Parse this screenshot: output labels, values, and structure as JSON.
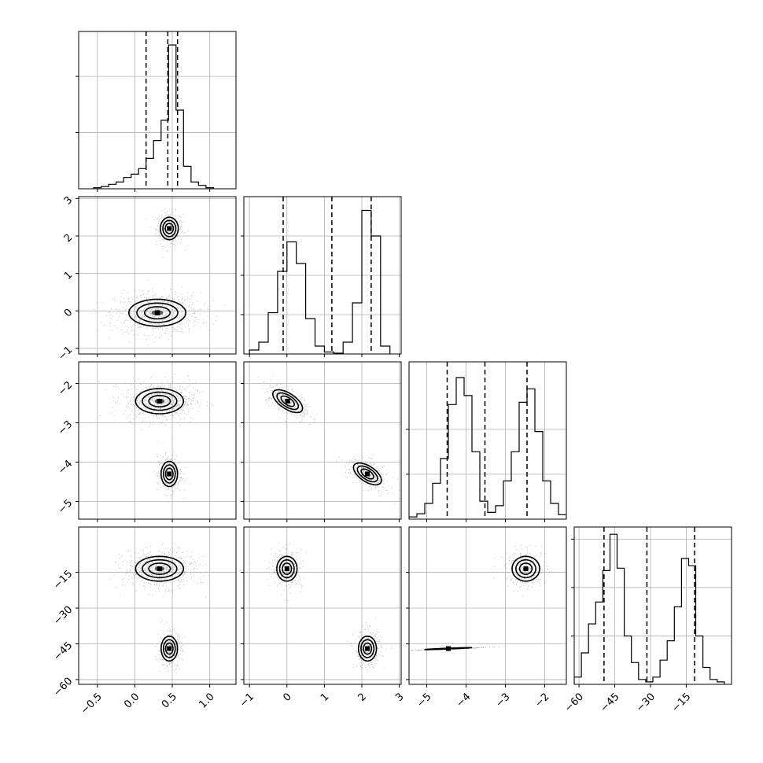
{
  "chart_data": {
    "type": "corner",
    "grid": true,
    "parameters": [
      {
        "range": [
          -0.75,
          1.35
        ],
        "ticks": [
          -0.5,
          0.0,
          0.5,
          1.0
        ],
        "tick_labels": [
          "−0.5",
          "0.0",
          "0.5",
          "1.0"
        ],
        "hist_ylim": [
          0,
          1.4
        ],
        "hist_ticks": [
          0.5,
          1.0
        ],
        "histogram": {
          "edges": [
            -0.55,
            -0.45,
            -0.35,
            -0.25,
            -0.15,
            -0.05,
            0.05,
            0.15,
            0.25,
            0.35,
            0.45,
            0.55,
            0.65,
            0.75,
            0.85,
            0.95,
            1.05
          ],
          "values": [
            0.01,
            0.02,
            0.04,
            0.06,
            0.1,
            0.13,
            0.18,
            0.27,
            0.43,
            0.61,
            1.28,
            0.7,
            0.2,
            0.06,
            0.03,
            0.01
          ]
        },
        "quantiles": [
          0.15,
          0.44,
          0.57
        ]
      },
      {
        "range": [
          -1.15,
          3.05
        ],
        "ticks": [
          -1,
          0,
          1,
          2,
          3
        ],
        "tick_labels": [
          "−1",
          "0",
          "1",
          "2",
          "3"
        ],
        "hist_ylim": [
          0,
          4
        ],
        "hist_ticks": [
          1,
          2,
          3
        ],
        "histogram": {
          "edges": [
            -1.0,
            -0.75,
            -0.5,
            -0.25,
            0.0,
            0.25,
            0.5,
            0.75,
            1.0,
            1.25,
            1.5,
            1.75,
            2.0,
            2.25,
            2.5,
            2.75
          ],
          "values": [
            0.1,
            0.3,
            1.05,
            2.1,
            2.85,
            2.3,
            0.9,
            0.2,
            0.05,
            0.02,
            0.3,
            1.3,
            3.65,
            3.0,
            0.2
          ]
        },
        "quantiles": [
          -0.1,
          1.2,
          2.25
        ]
      },
      {
        "range": [
          -5.45,
          -1.45
        ],
        "ticks": [
          -5,
          -4,
          -3,
          -2
        ],
        "tick_labels": [
          "−5",
          "−4",
          "−3",
          "−2"
        ],
        "hist_ylim": [
          0,
          3.5
        ],
        "hist_ticks": [
          1,
          2
        ],
        "histogram": {
          "edges": [
            -5.45,
            -5.25,
            -5.05,
            -4.85,
            -4.65,
            -4.45,
            -4.25,
            -4.05,
            -3.85,
            -3.65,
            -3.45,
            -3.25,
            -3.05,
            -2.85,
            -2.65,
            -2.45,
            -2.25,
            -2.05,
            -1.85,
            -1.65,
            -1.45
          ],
          "values": [
            0.05,
            0.12,
            0.35,
            0.8,
            1.35,
            2.55,
            3.15,
            2.75,
            1.5,
            0.4,
            0.15,
            0.3,
            0.85,
            1.5,
            2.6,
            2.9,
            1.95,
            0.85,
            0.35,
            0.1
          ]
        },
        "quantiles": [
          -4.48,
          -3.52,
          -2.45
        ]
      },
      {
        "range": [
          -62,
          4
        ],
        "ticks": [
          -60,
          -45,
          -30,
          -15
        ],
        "tick_labels": [
          "−60",
          "−45",
          "−30",
          "−15"
        ],
        "hist_ylim": [
          0,
          0.065
        ],
        "hist_ticks": [
          0.02,
          0.04,
          0.06
        ],
        "histogram": {
          "edges": [
            -62,
            -59,
            -56,
            -53,
            -50,
            -47,
            -44,
            -41,
            -38,
            -35,
            -32,
            -29,
            -26,
            -23,
            -20,
            -17,
            -14,
            -11,
            -8,
            -5,
            -2,
            1
          ],
          "values": [
            0.003,
            0.013,
            0.025,
            0.034,
            0.047,
            0.062,
            0.048,
            0.02,
            0.009,
            0.002,
            0.001,
            0.003,
            0.01,
            0.018,
            0.032,
            0.052,
            0.049,
            0.02,
            0.007,
            0.002,
            0.001
          ]
        },
        "quantiles": [
          -49.5,
          -31.5,
          -11.5
        ]
      }
    ],
    "pairs": [
      {
        "row": 1,
        "col": 0,
        "blobs": [
          {
            "cx": 0.46,
            "cy": 2.2,
            "rx": 0.12,
            "ry": 0.3,
            "angle": 0,
            "n": 1.0
          },
          {
            "cx": 0.3,
            "cy": -0.05,
            "rx": 0.38,
            "ry": 0.36,
            "angle": 0,
            "n": 2.4
          }
        ]
      },
      {
        "row": 2,
        "col": 0,
        "blobs": [
          {
            "cx": 0.33,
            "cy": -2.45,
            "rx": 0.32,
            "ry": 0.32,
            "angle": 0,
            "n": 2.2
          },
          {
            "cx": 0.46,
            "cy": -4.3,
            "rx": 0.11,
            "ry": 0.32,
            "angle": 0,
            "n": 1.0
          }
        ]
      },
      {
        "row": 2,
        "col": 1,
        "blobs": [
          {
            "cx": 0.02,
            "cy": -2.45,
            "rx": 0.45,
            "ry": 0.2,
            "angle": -0.55,
            "n": 1.0
          },
          {
            "cx": 2.15,
            "cy": -4.3,
            "rx": 0.42,
            "ry": 0.2,
            "angle": -0.55,
            "n": 1.0
          }
        ]
      },
      {
        "row": 3,
        "col": 0,
        "blobs": [
          {
            "cx": 0.33,
            "cy": -13.5,
            "rx": 0.32,
            "ry": 5.2,
            "angle": 0,
            "n": 2.2
          },
          {
            "cx": 0.46,
            "cy": -47,
            "rx": 0.11,
            "ry": 5.2,
            "angle": 0,
            "n": 1.0
          }
        ]
      },
      {
        "row": 3,
        "col": 1,
        "blobs": [
          {
            "cx": 0.0,
            "cy": -13.5,
            "rx": 0.27,
            "ry": 5.2,
            "angle": 0,
            "n": 1.0
          },
          {
            "cx": 2.15,
            "cy": -47,
            "rx": 0.24,
            "ry": 5.2,
            "angle": 0,
            "n": 1.0
          }
        ]
      },
      {
        "row": 3,
        "col": 2,
        "blobs": [
          {
            "cx": -2.48,
            "cy": -13.5,
            "rx": 0.35,
            "ry": 5.2,
            "angle": 0,
            "n": 1.0
          },
          {
            "cx": -4.45,
            "cy": -47,
            "rx": 0.72,
            "ry": 0.12,
            "angle": 0.6,
            "n": 1.0
          }
        ]
      }
    ]
  }
}
